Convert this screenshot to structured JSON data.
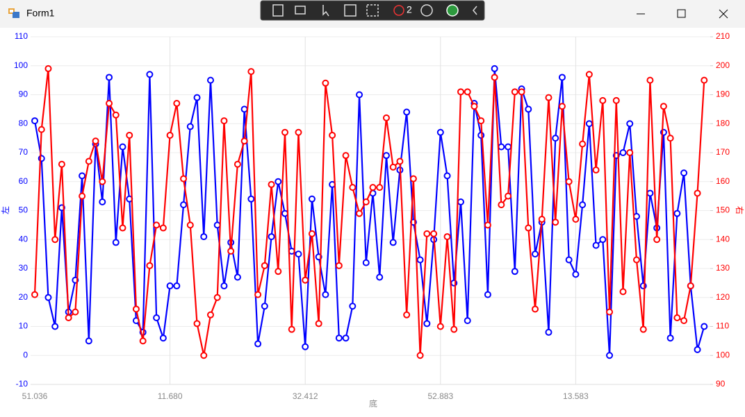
{
  "window": {
    "title": "Form1",
    "toolbar_badge": "2"
  },
  "chart_data": {
    "type": "line",
    "categories": [
      "51.036",
      null,
      null,
      null,
      null,
      null,
      null,
      null,
      null,
      null,
      null,
      null,
      null,
      null,
      null,
      null,
      null,
      null,
      null,
      null,
      "11.680",
      null,
      null,
      null,
      null,
      null,
      null,
      null,
      null,
      null,
      null,
      null,
      null,
      null,
      null,
      null,
      null,
      null,
      null,
      null,
      "32.412",
      null,
      null,
      null,
      null,
      null,
      null,
      null,
      null,
      null,
      null,
      null,
      null,
      null,
      null,
      null,
      null,
      null,
      null,
      null,
      "52.883",
      null,
      null,
      null,
      null,
      null,
      null,
      null,
      null,
      null,
      null,
      null,
      null,
      null,
      null,
      null,
      null,
      null,
      null,
      null,
      "13.583",
      null,
      null,
      null,
      null,
      null,
      null,
      null,
      null,
      null,
      null,
      null,
      null,
      null,
      null,
      null,
      null,
      null,
      null,
      null
    ],
    "xlabel": "底",
    "ylabel": "左",
    "y2label": "右",
    "ylim": [
      -10,
      110
    ],
    "yticks": [
      -10,
      0,
      10,
      20,
      30,
      40,
      50,
      60,
      70,
      80,
      90,
      100,
      110
    ],
    "y2lim": [
      90,
      210
    ],
    "y2ticks": [
      90,
      100,
      110,
      120,
      130,
      140,
      150,
      160,
      170,
      180,
      190,
      200,
      210
    ],
    "grid": true,
    "series": [
      {
        "color": "#0000ff",
        "values": [
          81,
          68,
          20,
          10,
          51,
          15,
          26,
          62,
          5,
          73,
          53,
          96,
          39,
          72,
          54,
          12,
          8,
          97,
          13,
          6,
          24,
          24,
          52,
          79,
          89,
          41,
          95,
          45,
          24,
          39,
          27,
          85,
          54,
          4,
          17,
          41,
          60,
          49,
          36,
          35,
          3,
          54,
          34,
          21,
          59,
          6,
          6,
          17,
          90,
          32,
          56,
          27,
          69,
          39,
          64,
          84,
          46,
          33,
          11,
          40,
          77,
          62,
          25,
          53,
          12,
          87,
          76,
          21,
          99,
          72,
          72,
          29,
          92,
          85,
          35,
          46,
          8,
          75,
          96,
          33,
          28,
          52,
          80,
          38,
          40,
          0,
          69,
          70,
          80,
          48,
          24,
          56,
          44,
          77,
          6,
          49,
          63,
          24,
          2,
          10
        ]
      },
      {
        "color": "#ff0000",
        "axis": "y2",
        "values": [
          121,
          178,
          199,
          140,
          166,
          113,
          115,
          155,
          167,
          174,
          160,
          187,
          183,
          144,
          176,
          116,
          105,
          131,
          145,
          144,
          176,
          187,
          161,
          145,
          111,
          100,
          114,
          120,
          181,
          136,
          166,
          174,
          198,
          121,
          131,
          159,
          129,
          177,
          109,
          177,
          126,
          142,
          111,
          194,
          176,
          131,
          169,
          158,
          149,
          153,
          158,
          158,
          182,
          165,
          167,
          114,
          161,
          100,
          142,
          142,
          110,
          141,
          109,
          191,
          191,
          186,
          181,
          145,
          196,
          152,
          155,
          191,
          191,
          144,
          116,
          147,
          189,
          146,
          186,
          160,
          147,
          173,
          197,
          164,
          188,
          115,
          188,
          122,
          170,
          133,
          109,
          195,
          140,
          186,
          175,
          113,
          112,
          124,
          156,
          195
        ]
      }
    ]
  }
}
